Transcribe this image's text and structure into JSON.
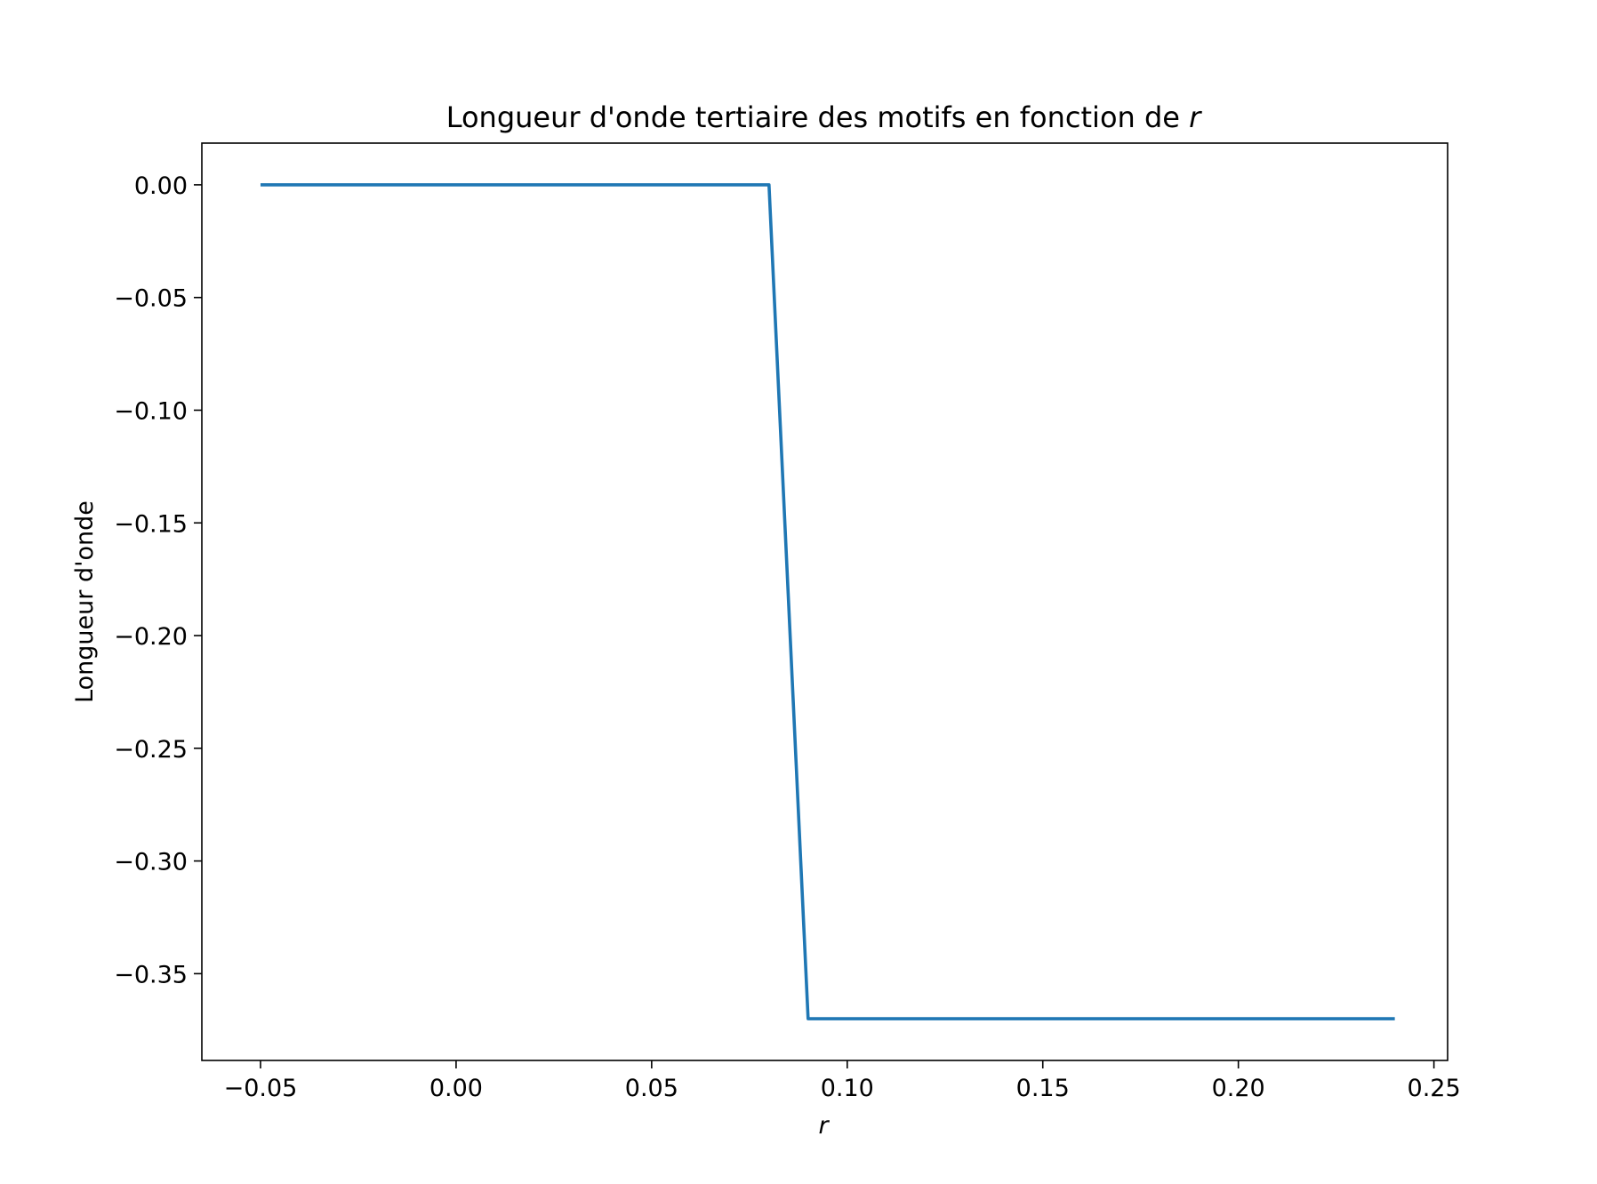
{
  "chart_data": {
    "type": "line",
    "title": "Longueur d'onde tertiaire des motifs en fonction de",
    "title_variable": "r",
    "xlabel": "r",
    "ylabel": "Longueur d'onde",
    "xlim": [
      -0.065,
      0.2535
    ],
    "ylim": [
      -0.3885,
      0.0185
    ],
    "x_ticks": [
      -0.05,
      0.0,
      0.05,
      0.1,
      0.15,
      0.2,
      0.25
    ],
    "x_tick_labels": [
      "−0.05",
      "0.00",
      "0.05",
      "0.10",
      "0.15",
      "0.20",
      "0.25"
    ],
    "y_ticks": [
      0.0,
      -0.05,
      -0.1,
      -0.15,
      -0.2,
      -0.25,
      -0.3,
      -0.35
    ],
    "y_tick_labels": [
      "0.00",
      "−0.05",
      "−0.10",
      "−0.15",
      "−0.20",
      "−0.25",
      "−0.30",
      "−0.35"
    ],
    "grid": false,
    "series": [
      {
        "color": "#1f77b4",
        "x": [
          -0.05,
          0.08,
          0.09,
          0.24
        ],
        "y": [
          0.0,
          0.0,
          -0.37,
          -0.37
        ]
      }
    ]
  }
}
